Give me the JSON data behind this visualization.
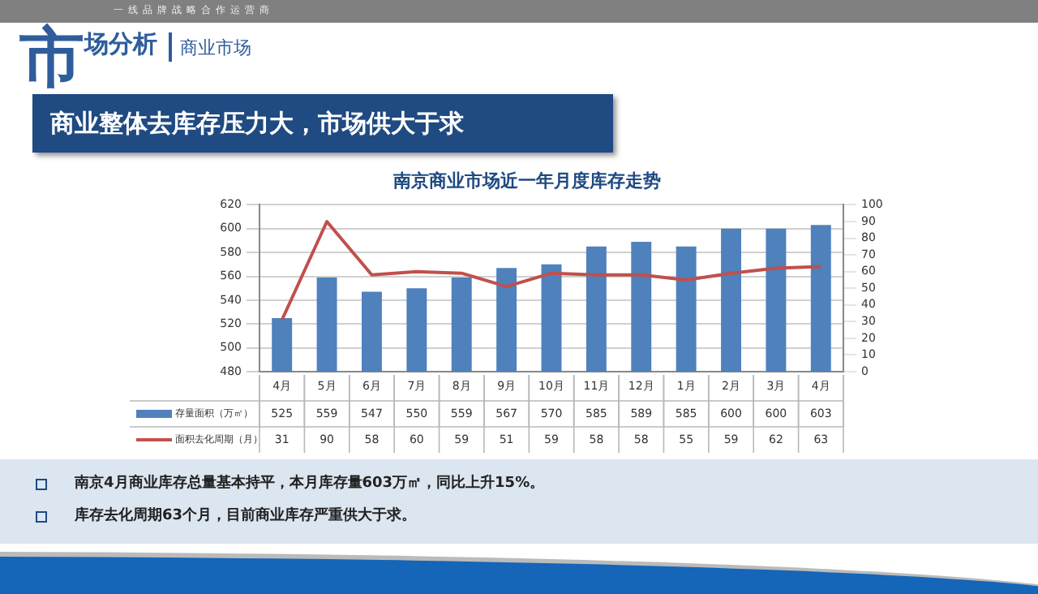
{
  "chart_data": {
    "type": "bar",
    "title": "南京商业市场近一年月度库存走势",
    "subtitle": "商业整体去库存压力大，市场供大于求",
    "annotations": [
      "一线品牌战略合作运营商",
      "市场分析",
      "商业市场",
      "南京4月商业库存总量基本持平，本月库存量603万㎡，同比上升15%。",
      "库存去化周期63个月，目前商业库存严重供大于求。"
    ],
    "categories": [
      "4月",
      "5月",
      "6月",
      "7月",
      "8月",
      "9月",
      "10月",
      "11月",
      "12月",
      "1月",
      "2月",
      "3月",
      "4月"
    ],
    "series": [
      {
        "name": "存量面积（万㎡）",
        "color": "#4f81bd",
        "values": [
          525,
          559,
          547,
          550,
          559,
          567,
          570,
          585,
          589,
          585,
          600,
          600,
          603
        ]
      },
      {
        "name": "面积去化周期（月）",
        "type": "line",
        "axis": "y2",
        "color": "#c0504d",
        "values": [
          31,
          90,
          58,
          60,
          59,
          51,
          59,
          58,
          58,
          55,
          59,
          62,
          63
        ]
      }
    ],
    "ylim": [
      480,
      620
    ],
    "yticks": [
      480,
      500,
      520,
      540,
      560,
      580,
      600,
      620
    ],
    "y2lim": [
      0,
      100
    ],
    "y2ticks": [
      0,
      10,
      20,
      30,
      40,
      50,
      60,
      70,
      80,
      90,
      100
    ],
    "grid": "y",
    "legend": "bottom",
    "data_labels": true,
    "marker": "none",
    "line_style": "solid"
  }
}
